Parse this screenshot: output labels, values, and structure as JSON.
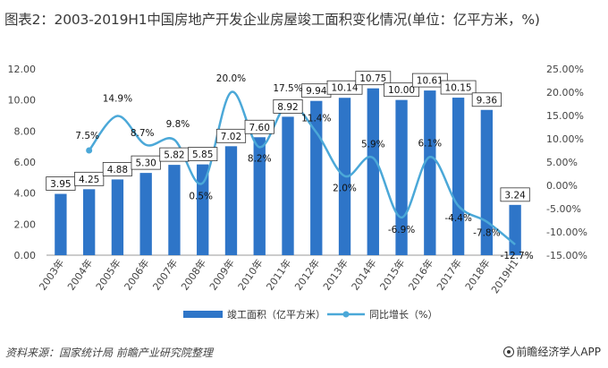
{
  "title": "图表2：2003-2019H1中国房地产开发企业房屋竣工面积变化情况(单位：亿平方米，%)",
  "footer": {
    "source": "资料来源：国家统计局 前瞻产业研究院整理",
    "brand": "前瞻经济学人APP",
    "brand_icon": "qianzhan-logo-icon"
  },
  "chart_data": {
    "type": "bar",
    "categories": [
      "2003年",
      "2004年",
      "2005年",
      "2006年",
      "2007年",
      "2008年",
      "2009年",
      "2010年",
      "2011年",
      "2012年",
      "2013年",
      "2014年",
      "2015年",
      "2016年",
      "2017年",
      "2018年",
      "2019H1"
    ],
    "series": [
      {
        "name": "竣工面积（亿平方米）",
        "type": "bar",
        "axis": "left",
        "color": "#2E75C8",
        "values": [
          3.95,
          4.25,
          4.88,
          5.3,
          5.82,
          5.85,
          7.02,
          7.6,
          8.92,
          9.94,
          10.14,
          10.75,
          10.0,
          10.61,
          10.15,
          9.36,
          3.24
        ],
        "labels": [
          "3.95",
          "4.25",
          "4.88",
          "5.30",
          "5.82",
          "5.85",
          "7.02",
          "7.60",
          "8.92",
          "9.94",
          "10.14",
          "10.75",
          "10.00",
          "10.61",
          "10.15",
          "9.36",
          "3.24"
        ]
      },
      {
        "name": "同比增长（%）",
        "type": "line",
        "axis": "right",
        "color": "#4BA8D8",
        "values": [
          null,
          7.5,
          14.9,
          8.7,
          9.8,
          0.5,
          20.0,
          8.2,
          17.5,
          11.4,
          2.0,
          5.9,
          -6.9,
          6.1,
          -4.4,
          -7.8,
          -12.7
        ],
        "labels": [
          "",
          "7.5%",
          "14.9%",
          "8.7%",
          "9.8%",
          "0.5%",
          "20.0%",
          "8.2%",
          "17.5%",
          "11.4%",
          "2.0%",
          "5.9%",
          "-6.9%",
          "6.1%",
          "-4.4%",
          "-7.8%",
          "-12.7%"
        ]
      }
    ],
    "y_left": {
      "min": 0,
      "max": 12,
      "step": 2,
      "ticks": [
        "0.00",
        "2.00",
        "4.00",
        "6.00",
        "8.00",
        "10.00",
        "12.00"
      ]
    },
    "y_right": {
      "min": -15,
      "max": 25,
      "step": 5,
      "ticks": [
        "-15.00%",
        "-10.00%",
        "-5.00%",
        "0.00%",
        "5.00%",
        "10.00%",
        "15.00%",
        "20.00%",
        "25.00%"
      ]
    },
    "grid": false,
    "legend": "bottom"
  }
}
